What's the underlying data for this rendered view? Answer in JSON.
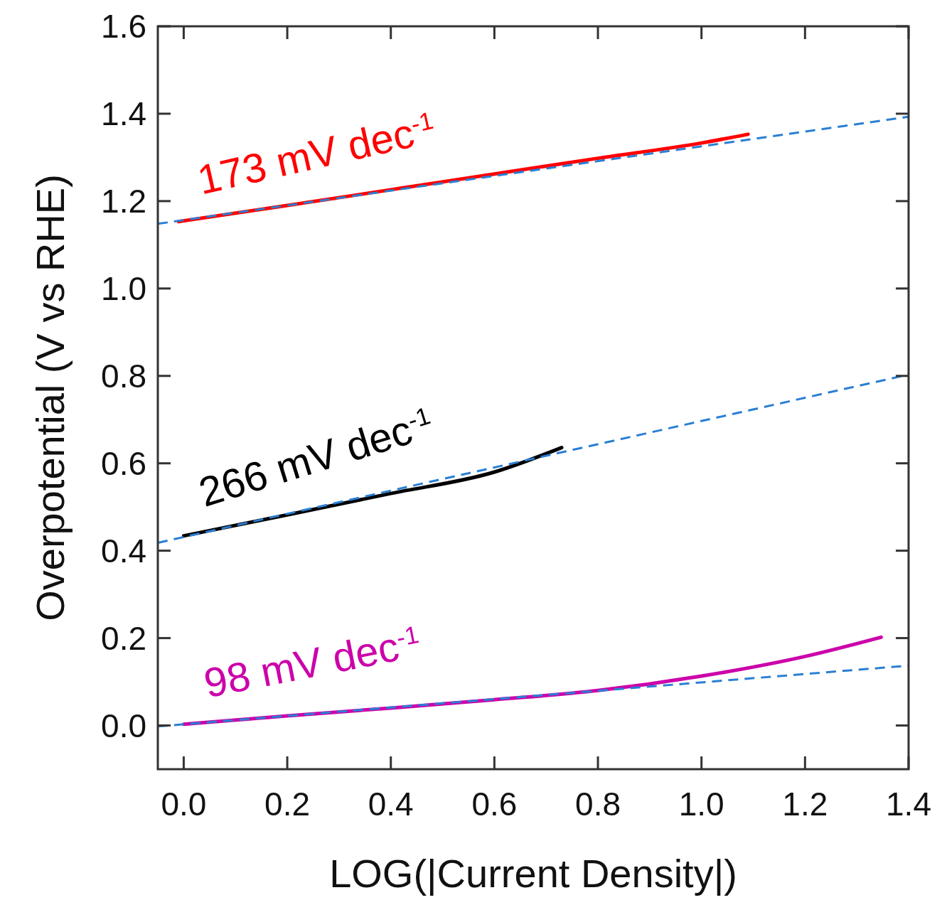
{
  "chart_data": {
    "type": "line",
    "xlabel": "LOG(|Current Density|)",
    "ylabel": "Overpotential (V vs RHE)",
    "xlim": [
      -0.05,
      1.4
    ],
    "ylim": [
      -0.1,
      1.6
    ],
    "xticks": [
      {
        "value": 0.0,
        "label": "0.0"
      },
      {
        "value": 0.2,
        "label": "0.2"
      },
      {
        "value": 0.4,
        "label": "0.4"
      },
      {
        "value": 0.6,
        "label": "0.6"
      },
      {
        "value": 0.8,
        "label": "0.8"
      },
      {
        "value": 1.0,
        "label": "1.0"
      },
      {
        "value": 1.2,
        "label": "1.2"
      },
      {
        "value": 1.4,
        "label": "1.4"
      }
    ],
    "yticks": [
      {
        "value": 0.0,
        "label": "0.0"
      },
      {
        "value": 0.2,
        "label": "0.2"
      },
      {
        "value": 0.4,
        "label": "0.4"
      },
      {
        "value": 0.6,
        "label": "0.6"
      },
      {
        "value": 0.8,
        "label": "0.8"
      },
      {
        "value": 1.0,
        "label": "1.0"
      },
      {
        "value": 1.2,
        "label": "1.2"
      },
      {
        "value": 1.4,
        "label": "1.4"
      },
      {
        "value": 1.6,
        "label": "1.6"
      }
    ],
    "grid": false,
    "marker": "none",
    "series": [
      {
        "name": "173 mV dec$^{-1}$",
        "color": "#ff0000",
        "line_style": "solid",
        "x": [
          -0.01,
          0.2,
          0.4,
          0.6,
          0.8,
          1.0,
          1.09
        ],
        "values": [
          1.153,
          1.19,
          1.226,
          1.262,
          1.298,
          1.333,
          1.353
        ]
      },
      {
        "name": "266 mV dec$^{-1}$",
        "color": "#000000",
        "line_style": "solid",
        "x": [
          0.0,
          0.2,
          0.4,
          0.6,
          0.73
        ],
        "values": [
          0.434,
          0.482,
          0.531,
          0.58,
          0.636
        ]
      },
      {
        "name": "98 mV dec$^{-1}$",
        "color": "#cc00aa",
        "line_style": "solid",
        "x": [
          0.0,
          0.2,
          0.4,
          0.6,
          0.8,
          1.0,
          1.2,
          1.347
        ],
        "values": [
          0.003,
          0.022,
          0.04,
          0.059,
          0.08,
          0.113,
          0.158,
          0.202
        ]
      },
      {
        "color": "#2a7fd4",
        "line_style": "dashed",
        "x": [
          -0.05,
          1.4
        ],
        "values": [
          1.148,
          1.393
        ]
      },
      {
        "color": "#2a7fd4",
        "line_style": "dashed",
        "x": [
          -0.05,
          1.4
        ],
        "values": [
          0.418,
          0.803
        ]
      },
      {
        "color": "#2a7fd4",
        "line_style": "dashed",
        "x": [
          -0.05,
          1.4
        ],
        "values": [
          -0.002,
          0.137
        ]
      }
    ]
  }
}
